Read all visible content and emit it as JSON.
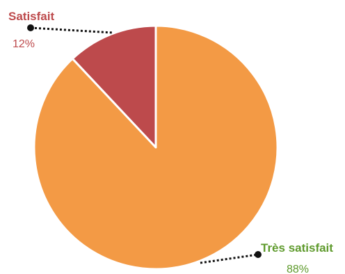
{
  "chart_data": {
    "type": "pie",
    "title": "",
    "slices": [
      {
        "label": "Satisfait",
        "value": 12,
        "value_label": "12%",
        "color": "#BD4A4C",
        "label_color": "#BD4A4C"
      },
      {
        "label": "Très satisfait",
        "value": 88,
        "value_label": "88%",
        "color": "#F39A45",
        "label_color": "#5E9A2C"
      }
    ],
    "start_angle_deg": 0,
    "direction": "counterclockwise",
    "slice_border_color": "#ffffff",
    "leader_line_color": "#111111"
  }
}
